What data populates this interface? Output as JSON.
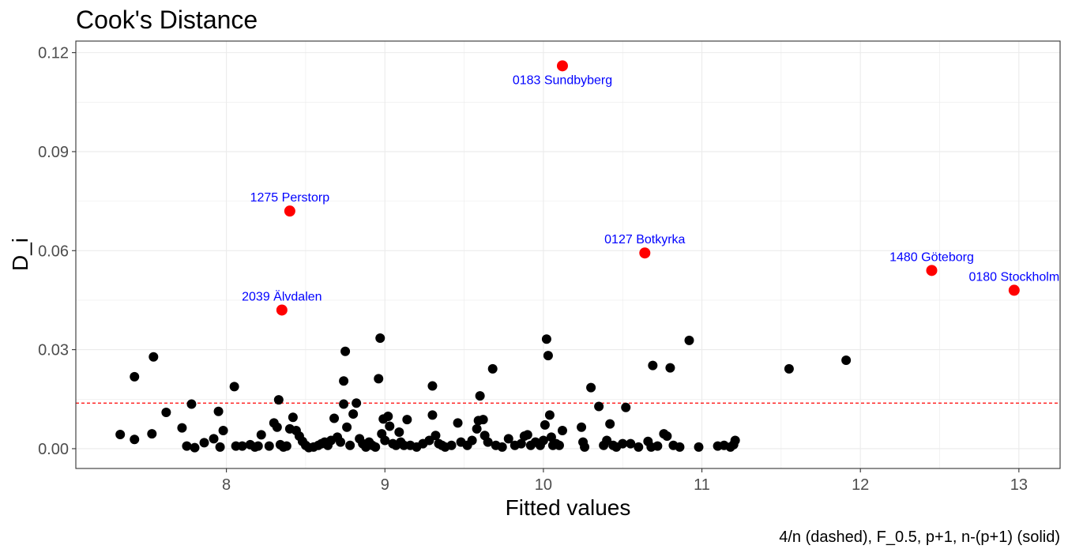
{
  "chart_data": {
    "type": "scatter",
    "title": "Cook's Distance",
    "xlabel": "Fitted values",
    "ylabel": "D_i",
    "caption": "4/n (dashed), F_0.5, p+1, n-(p+1) (solid)",
    "xlim": [
      7.05,
      13.26
    ],
    "ylim": [
      -0.006,
      0.1235
    ],
    "x_ticks": [
      8,
      9,
      10,
      11,
      12,
      13
    ],
    "y_ticks": [
      0.0,
      0.03,
      0.06,
      0.09,
      0.12
    ],
    "y_tick_labels": [
      "0.00",
      "0.03",
      "0.06",
      "0.09",
      "0.12"
    ],
    "grid": true,
    "colors": {
      "point": "#000000",
      "highlight": "#ff0000",
      "label": "#0000ff",
      "threshold": "#ff0000",
      "panel_border": "#333333",
      "grid": "#ebebeb"
    },
    "threshold_dashed": 0.0138,
    "highlighted": [
      {
        "label": "0183 Sundbyberg",
        "x": 10.12,
        "y": 0.116,
        "label_pos": "below"
      },
      {
        "label": "1275 Perstorp",
        "x": 8.4,
        "y": 0.072,
        "label_pos": "above"
      },
      {
        "label": "0127 Botkyrka",
        "x": 10.64,
        "y": 0.0593,
        "label_pos": "above"
      },
      {
        "label": "1480 Göteborg",
        "x": 12.45,
        "y": 0.054,
        "label_pos": "above"
      },
      {
        "label": "0180 Stockholm",
        "x": 12.97,
        "y": 0.048,
        "label_pos": "above"
      },
      {
        "label": "2039 Älvdalen",
        "x": 8.35,
        "y": 0.042,
        "label_pos": "above"
      }
    ],
    "points": [
      [
        7.33,
        0.0043
      ],
      [
        7.42,
        0.0218
      ],
      [
        7.42,
        0.0028
      ],
      [
        7.53,
        0.0045
      ],
      [
        7.54,
        0.0278
      ],
      [
        7.62,
        0.011
      ],
      [
        7.72,
        0.0063
      ],
      [
        7.75,
        0.0008
      ],
      [
        7.78,
        0.0135
      ],
      [
        7.8,
        0.0003
      ],
      [
        7.86,
        0.0018
      ],
      [
        7.92,
        0.003
      ],
      [
        7.95,
        0.0113
      ],
      [
        7.96,
        0.0005
      ],
      [
        7.98,
        0.0055
      ],
      [
        8.05,
        0.0188
      ],
      [
        8.06,
        0.0008
      ],
      [
        8.1,
        0.0008
      ],
      [
        8.15,
        0.0012
      ],
      [
        8.18,
        0.0005
      ],
      [
        8.2,
        0.0008
      ],
      [
        8.22,
        0.0042
      ],
      [
        8.27,
        0.0008
      ],
      [
        8.3,
        0.0078
      ],
      [
        8.32,
        0.0065
      ],
      [
        8.33,
        0.0148
      ],
      [
        8.34,
        0.0012
      ],
      [
        8.36,
        0.0005
      ],
      [
        8.38,
        0.0008
      ],
      [
        8.4,
        0.006
      ],
      [
        8.42,
        0.0095
      ],
      [
        8.44,
        0.0055
      ],
      [
        8.46,
        0.0038
      ],
      [
        8.48,
        0.0022
      ],
      [
        8.5,
        0.001
      ],
      [
        8.52,
        0.0003
      ],
      [
        8.55,
        0.0005
      ],
      [
        8.58,
        0.001
      ],
      [
        8.6,
        0.0015
      ],
      [
        8.62,
        0.002
      ],
      [
        8.64,
        0.001
      ],
      [
        8.66,
        0.0025
      ],
      [
        8.68,
        0.0092
      ],
      [
        8.7,
        0.0035
      ],
      [
        8.72,
        0.002
      ],
      [
        8.74,
        0.0135
      ],
      [
        8.74,
        0.0205
      ],
      [
        8.75,
        0.0295
      ],
      [
        8.76,
        0.0065
      ],
      [
        8.78,
        0.001
      ],
      [
        8.8,
        0.0105
      ],
      [
        8.82,
        0.0138
      ],
      [
        8.84,
        0.003
      ],
      [
        8.86,
        0.0015
      ],
      [
        8.88,
        0.0005
      ],
      [
        8.9,
        0.002
      ],
      [
        8.92,
        0.001
      ],
      [
        8.94,
        0.0005
      ],
      [
        8.96,
        0.0212
      ],
      [
        8.97,
        0.0335
      ],
      [
        8.98,
        0.0045
      ],
      [
        8.99,
        0.009
      ],
      [
        9.0,
        0.0025
      ],
      [
        9.02,
        0.0098
      ],
      [
        9.03,
        0.0068
      ],
      [
        9.05,
        0.0015
      ],
      [
        9.07,
        0.001
      ],
      [
        9.09,
        0.005
      ],
      [
        9.1,
        0.002
      ],
      [
        9.12,
        0.001
      ],
      [
        9.14,
        0.0088
      ],
      [
        9.16,
        0.001
      ],
      [
        9.2,
        0.0005
      ],
      [
        9.24,
        0.0015
      ],
      [
        9.28,
        0.0025
      ],
      [
        9.3,
        0.0102
      ],
      [
        9.3,
        0.019
      ],
      [
        9.32,
        0.004
      ],
      [
        9.34,
        0.0015
      ],
      [
        9.36,
        0.001
      ],
      [
        9.38,
        0.0005
      ],
      [
        9.42,
        0.001
      ],
      [
        9.46,
        0.0078
      ],
      [
        9.48,
        0.002
      ],
      [
        9.52,
        0.001
      ],
      [
        9.55,
        0.0025
      ],
      [
        9.58,
        0.006
      ],
      [
        9.59,
        0.0085
      ],
      [
        9.6,
        0.016
      ],
      [
        9.62,
        0.0088
      ],
      [
        9.63,
        0.004
      ],
      [
        9.65,
        0.002
      ],
      [
        9.68,
        0.0242
      ],
      [
        9.7,
        0.001
      ],
      [
        9.74,
        0.0005
      ],
      [
        9.78,
        0.003
      ],
      [
        9.82,
        0.001
      ],
      [
        9.86,
        0.0015
      ],
      [
        9.88,
        0.0038
      ],
      [
        9.9,
        0.0042
      ],
      [
        9.92,
        0.001
      ],
      [
        9.95,
        0.002
      ],
      [
        9.98,
        0.001
      ],
      [
        10.0,
        0.0025
      ],
      [
        10.01,
        0.0072
      ],
      [
        10.02,
        0.0332
      ],
      [
        10.03,
        0.0282
      ],
      [
        10.04,
        0.0102
      ],
      [
        10.05,
        0.0035
      ],
      [
        10.06,
        0.001
      ],
      [
        10.08,
        0.0015
      ],
      [
        10.1,
        0.001
      ],
      [
        10.12,
        0.0055
      ],
      [
        10.24,
        0.0065
      ],
      [
        10.25,
        0.002
      ],
      [
        10.26,
        0.0005
      ],
      [
        10.3,
        0.0185
      ],
      [
        10.35,
        0.0128
      ],
      [
        10.38,
        0.001
      ],
      [
        10.4,
        0.0025
      ],
      [
        10.42,
        0.0075
      ],
      [
        10.44,
        0.001
      ],
      [
        10.46,
        0.0005
      ],
      [
        10.5,
        0.0015
      ],
      [
        10.52,
        0.0125
      ],
      [
        10.55,
        0.0015
      ],
      [
        10.6,
        0.0005
      ],
      [
        10.66,
        0.0022
      ],
      [
        10.68,
        0.0005
      ],
      [
        10.69,
        0.0252
      ],
      [
        10.72,
        0.0008
      ],
      [
        10.76,
        0.0045
      ],
      [
        10.78,
        0.0038
      ],
      [
        10.8,
        0.0245
      ],
      [
        10.82,
        0.001
      ],
      [
        10.86,
        0.0005
      ],
      [
        10.92,
        0.0328
      ],
      [
        10.98,
        0.0005
      ],
      [
        11.1,
        0.0008
      ],
      [
        11.14,
        0.001
      ],
      [
        11.18,
        0.0005
      ],
      [
        11.2,
        0.0012
      ],
      [
        11.21,
        0.0025
      ],
      [
        11.55,
        0.0242
      ],
      [
        11.91,
        0.0268
      ]
    ]
  }
}
